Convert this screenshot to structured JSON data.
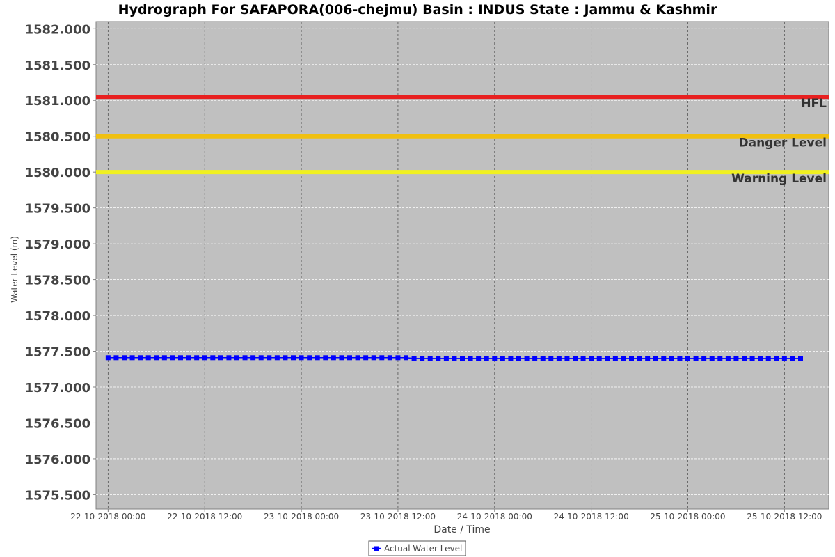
{
  "chart_data": {
    "type": "line",
    "title": "Hydrograph For SAFAPORA(006-chejmu) Basin : INDUS State : Jammu & Kashmir",
    "xlabel": "Date / Time",
    "ylabel": "Water Level (m)",
    "ylim": [
      1575.3,
      1582.1
    ],
    "xlim": [
      "2018-10-21T22:30",
      "2018-10-25T17:30"
    ],
    "y_ticks": [
      {
        "value": 1575.5,
        "label": "1575.500"
      },
      {
        "value": 1576.0,
        "label": "1576.000"
      },
      {
        "value": 1576.5,
        "label": "1576.500"
      },
      {
        "value": 1577.0,
        "label": "1577.000"
      },
      {
        "value": 1577.5,
        "label": "1577.500"
      },
      {
        "value": 1578.0,
        "label": "1578.000"
      },
      {
        "value": 1578.5,
        "label": "1578.500"
      },
      {
        "value": 1579.0,
        "label": "1579.000"
      },
      {
        "value": 1579.5,
        "label": "1579.500"
      },
      {
        "value": 1580.0,
        "label": "1580.000"
      },
      {
        "value": 1580.5,
        "label": "1580.500"
      },
      {
        "value": 1581.0,
        "label": "1581.000"
      },
      {
        "value": 1581.5,
        "label": "1581.500"
      },
      {
        "value": 1582.0,
        "label": "1582.000"
      }
    ],
    "x_ticks": [
      {
        "value": "2018-10-22T00:00",
        "label": "22-10-2018 00:00"
      },
      {
        "value": "2018-10-22T12:00",
        "label": "22-10-2018 12:00"
      },
      {
        "value": "2018-10-23T00:00",
        "label": "23-10-2018 00:00"
      },
      {
        "value": "2018-10-23T12:00",
        "label": "23-10-2018 12:00"
      },
      {
        "value": "2018-10-24T00:00",
        "label": "24-10-2018 00:00"
      },
      {
        "value": "2018-10-24T12:00",
        "label": "24-10-2018 12:00"
      },
      {
        "value": "2018-10-25T00:00",
        "label": "25-10-2018 00:00"
      },
      {
        "value": "2018-10-25T12:00",
        "label": "25-10-2018 12:00"
      }
    ],
    "reference_lines": [
      {
        "name": "HFL",
        "value": 1581.05,
        "color": "#e82020"
      },
      {
        "name": "Danger Level",
        "value": 1580.5,
        "color": "#f0c010"
      },
      {
        "name": "Warning Level",
        "value": 1580.0,
        "color": "#f0f020"
      }
    ],
    "series": [
      {
        "name": "Actual Water Level",
        "color": "#0000ff",
        "marker": "square",
        "start": "2018-10-22T00:00",
        "end": "2018-10-25T14:00",
        "interval_hours": 1,
        "values": [
          1577.41,
          1577.41,
          1577.41,
          1577.41,
          1577.41,
          1577.41,
          1577.41,
          1577.41,
          1577.41,
          1577.41,
          1577.41,
          1577.41,
          1577.41,
          1577.41,
          1577.41,
          1577.41,
          1577.41,
          1577.41,
          1577.41,
          1577.41,
          1577.41,
          1577.41,
          1577.41,
          1577.41,
          1577.41,
          1577.41,
          1577.41,
          1577.41,
          1577.41,
          1577.41,
          1577.41,
          1577.41,
          1577.41,
          1577.41,
          1577.41,
          1577.41,
          1577.41,
          1577.41,
          1577.4,
          1577.4,
          1577.4,
          1577.4,
          1577.4,
          1577.4,
          1577.4,
          1577.4,
          1577.4,
          1577.4,
          1577.4,
          1577.4,
          1577.4,
          1577.4,
          1577.4,
          1577.4,
          1577.4,
          1577.4,
          1577.4,
          1577.4,
          1577.4,
          1577.4,
          1577.4,
          1577.4,
          1577.4,
          1577.4,
          1577.4,
          1577.4,
          1577.4,
          1577.4,
          1577.4,
          1577.4,
          1577.4,
          1577.4,
          1577.4,
          1577.4,
          1577.4,
          1577.4,
          1577.4,
          1577.4,
          1577.4,
          1577.4,
          1577.4,
          1577.4,
          1577.4,
          1577.4,
          1577.4,
          1577.4,
          1577.4
        ]
      }
    ],
    "grid": true,
    "legend": {
      "position": "bottom-center"
    },
    "plot_background": "#c0c0c0"
  }
}
